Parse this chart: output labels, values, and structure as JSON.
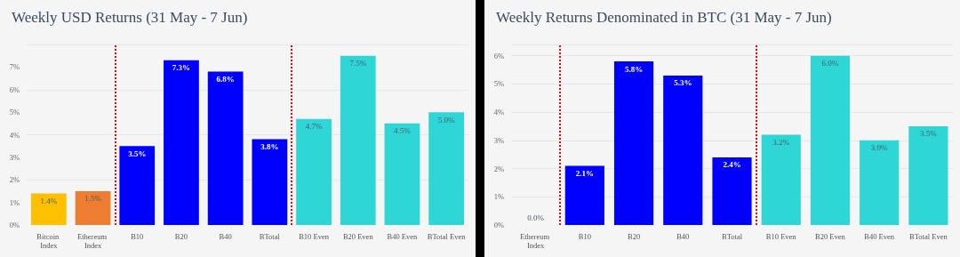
{
  "chart_data": [
    {
      "type": "bar",
      "title": "Weekly USD Returns (31 May - 7 Jun)",
      "categories": [
        "Bitcoin Index",
        "Ethereum Index",
        "B10",
        "B20",
        "B40",
        "BTotal",
        "B10 Even",
        "B20 Even",
        "B40 Even",
        "BTotal Even"
      ],
      "values": [
        1.4,
        1.5,
        3.5,
        7.3,
        6.8,
        3.8,
        4.7,
        7.5,
        4.5,
        5.0
      ],
      "value_labels": [
        "1.4%",
        "1.5%",
        "3.5%",
        "7.3%",
        "6.8%",
        "3.8%",
        "4.7%",
        "7.5%",
        "4.5%",
        "5.0%"
      ],
      "colors": [
        "#ffc000",
        "#ed7d31",
        "#0000ff",
        "#0000ff",
        "#0000ff",
        "#0000ff",
        "#2ed6d6",
        "#2ed6d6",
        "#2ed6d6",
        "#2ed6d6"
      ],
      "ylim": [
        0,
        8
      ],
      "yticks": [
        {
          "value": 0,
          "label": "0%"
        },
        {
          "value": 1,
          "label": "1%"
        },
        {
          "value": 2,
          "label": "2%"
        },
        {
          "value": 3,
          "label": "3%"
        },
        {
          "value": 4,
          "label": "4%"
        },
        {
          "value": 5,
          "label": "5%"
        },
        {
          "value": 6,
          "label": "6%"
        },
        {
          "value": 7,
          "label": "7%"
        }
      ],
      "grid": "y"
    },
    {
      "type": "bar",
      "title": "Weekly Returns Denominated in BTC (31 May - 7 Jun)",
      "categories": [
        "Ethereum Index",
        "B10",
        "B20",
        "B40",
        "BTotal",
        "B10 Even",
        "B20 Even",
        "B40 Even",
        "BTotal Even"
      ],
      "values": [
        0.0,
        2.1,
        5.8,
        5.3,
        2.4,
        3.2,
        6.0,
        3.0,
        3.5
      ],
      "value_labels": [
        "0.0%",
        "2.1%",
        "5.8%",
        "5.3%",
        "2.4%",
        "3.2%",
        "6.0%",
        "3.0%",
        "3.5%"
      ],
      "colors": [
        "#ed7d31",
        "#0000ff",
        "#0000ff",
        "#0000ff",
        "#0000ff",
        "#2ed6d6",
        "#2ed6d6",
        "#2ed6d6",
        "#2ed6d6"
      ],
      "ylim": [
        0,
        6.4
      ],
      "yticks": [
        {
          "value": 0,
          "label": "0%"
        },
        {
          "value": 1,
          "label": "1%"
        },
        {
          "value": 2,
          "label": "2%"
        },
        {
          "value": 3,
          "label": "3%"
        },
        {
          "value": 4,
          "label": "4%"
        },
        {
          "value": 5,
          "label": "5%"
        },
        {
          "value": 6,
          "label": "6%"
        }
      ],
      "grid": "y"
    }
  ]
}
